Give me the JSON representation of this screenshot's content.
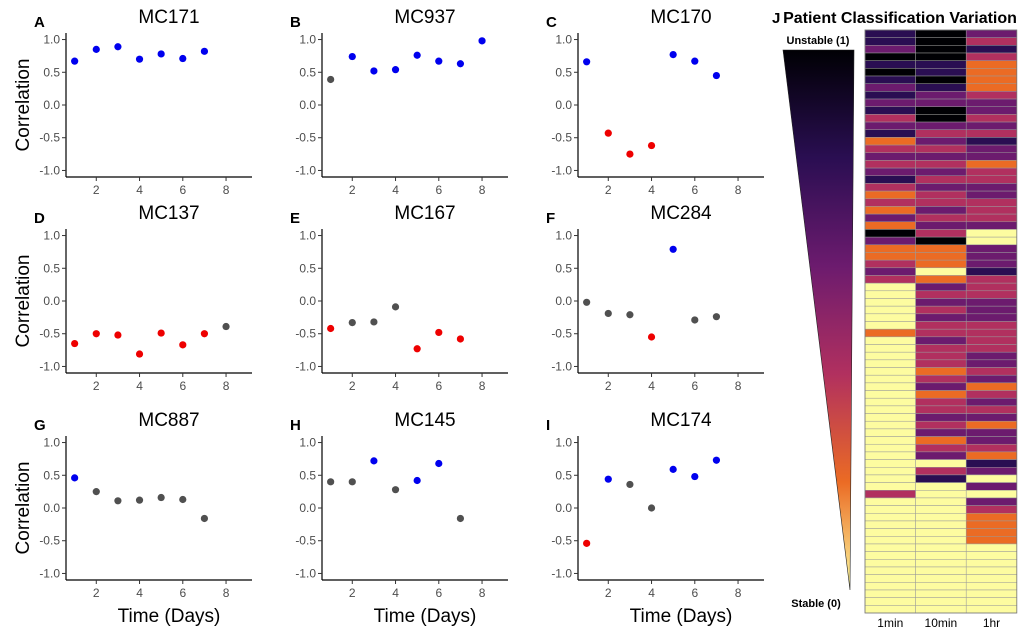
{
  "figure": {
    "ylabel": "Correlation",
    "xlabel": "Time (Days)",
    "colors": {
      "stable_positive": "#0000ee",
      "stable_negative": "#ee0000",
      "neutral": "#505050"
    }
  },
  "chart_data": [
    {
      "type": "scatter",
      "letter": "A",
      "title": "MC171",
      "x": [
        1,
        2,
        3,
        4,
        5,
        6,
        7
      ],
      "y": [
        0.67,
        0.85,
        0.89,
        0.7,
        0.78,
        0.71,
        0.82
      ],
      "colors": [
        "blue",
        "blue",
        "blue",
        "blue",
        "blue",
        "blue",
        "blue"
      ],
      "xlim": [
        0.6,
        9.2
      ],
      "ylim": [
        -1.1,
        1.1
      ],
      "xticks": [
        2,
        4,
        6,
        8
      ],
      "yticks": [
        "1.0",
        "0.5",
        "0.0",
        "-0.5",
        "-1.0"
      ]
    },
    {
      "type": "scatter",
      "letter": "B",
      "title": "MC937",
      "x": [
        1,
        2,
        3,
        4,
        5,
        6,
        7,
        8
      ],
      "y": [
        0.39,
        0.74,
        0.52,
        0.54,
        0.76,
        0.67,
        0.63,
        0.98
      ],
      "colors": [
        "grey",
        "blue",
        "blue",
        "blue",
        "blue",
        "blue",
        "blue",
        "blue"
      ],
      "xlim": [
        0.6,
        9.2
      ],
      "ylim": [
        -1.1,
        1.1
      ],
      "xticks": [
        2,
        4,
        6,
        8
      ],
      "yticks": [
        "1.0",
        "0.5",
        "0.0",
        "-0.5",
        "-1.0"
      ]
    },
    {
      "type": "scatter",
      "letter": "C",
      "title": "MC170",
      "x": [
        1,
        2,
        3,
        4,
        5,
        6,
        7
      ],
      "y": [
        0.66,
        -0.43,
        -0.75,
        -0.62,
        0.77,
        0.67,
        0.45
      ],
      "colors": [
        "blue",
        "red",
        "red",
        "red",
        "blue",
        "blue",
        "blue"
      ],
      "xlim": [
        0.6,
        9.2
      ],
      "ylim": [
        -1.1,
        1.1
      ],
      "xticks": [
        2,
        4,
        6,
        8
      ],
      "yticks": [
        "1.0",
        "0.5",
        "0.0",
        "-0.5",
        "-1.0"
      ]
    },
    {
      "type": "scatter",
      "letter": "D",
      "title": "MC137",
      "x": [
        1,
        2,
        3,
        4,
        5,
        6,
        7,
        8
      ],
      "y": [
        -0.65,
        -0.5,
        -0.52,
        -0.81,
        -0.49,
        -0.67,
        -0.5,
        -0.39
      ],
      "colors": [
        "red",
        "red",
        "red",
        "red",
        "red",
        "red",
        "red",
        "grey"
      ],
      "xlim": [
        0.6,
        9.2
      ],
      "ylim": [
        -1.1,
        1.1
      ],
      "xticks": [
        2,
        4,
        6,
        8
      ],
      "yticks": [
        "1.0",
        "0.5",
        "0.0",
        "-0.5",
        "-1.0"
      ]
    },
    {
      "type": "scatter",
      "letter": "E",
      "title": "MC167",
      "x": [
        1,
        2,
        3,
        4,
        5,
        6,
        7
      ],
      "y": [
        -0.42,
        -0.33,
        -0.32,
        -0.09,
        -0.73,
        -0.48,
        -0.58
      ],
      "colors": [
        "red",
        "grey",
        "grey",
        "grey",
        "red",
        "red",
        "red"
      ],
      "xlim": [
        0.6,
        9.2
      ],
      "ylim": [
        -1.1,
        1.1
      ],
      "xticks": [
        2,
        4,
        6,
        8
      ],
      "yticks": [
        "1.0",
        "0.5",
        "0.0",
        "-0.5",
        "-1.0"
      ]
    },
    {
      "type": "scatter",
      "letter": "F",
      "title": "MC284",
      "x": [
        1,
        2,
        3,
        4,
        5,
        6,
        7
      ],
      "y": [
        -0.02,
        -0.19,
        -0.21,
        -0.55,
        0.79,
        -0.29,
        -0.24
      ],
      "colors": [
        "grey",
        "grey",
        "grey",
        "red",
        "blue",
        "grey",
        "grey"
      ],
      "xlim": [
        0.6,
        9.2
      ],
      "ylim": [
        -1.1,
        1.1
      ],
      "xticks": [
        2,
        4,
        6,
        8
      ],
      "yticks": [
        "1.0",
        "0.5",
        "0.0",
        "-0.5",
        "-1.0"
      ]
    },
    {
      "type": "scatter",
      "letter": "G",
      "title": "MC887",
      "x": [
        1,
        2,
        3,
        4,
        5,
        6,
        7
      ],
      "y": [
        0.46,
        0.25,
        0.11,
        0.12,
        0.16,
        0.13,
        -0.16
      ],
      "colors": [
        "blue",
        "grey",
        "grey",
        "grey",
        "grey",
        "grey",
        "grey"
      ],
      "xlim": [
        0.6,
        9.2
      ],
      "ylim": [
        -1.1,
        1.1
      ],
      "xticks": [
        2,
        4,
        6,
        8
      ],
      "yticks": [
        "1.0",
        "0.5",
        "0.0",
        "-0.5",
        "-1.0"
      ]
    },
    {
      "type": "scatter",
      "letter": "H",
      "title": "MC145",
      "x": [
        1,
        2,
        3,
        4,
        5,
        6,
        7
      ],
      "y": [
        0.4,
        0.4,
        0.72,
        0.28,
        0.42,
        0.68,
        -0.16
      ],
      "colors": [
        "grey",
        "grey",
        "blue",
        "grey",
        "blue",
        "blue",
        "grey"
      ],
      "xlim": [
        0.6,
        9.2
      ],
      "ylim": [
        -1.1,
        1.1
      ],
      "xticks": [
        2,
        4,
        6,
        8
      ],
      "yticks": [
        "1.0",
        "0.5",
        "0.0",
        "-0.5",
        "-1.0"
      ]
    },
    {
      "type": "scatter",
      "letter": "I",
      "title": "MC174",
      "x": [
        1,
        2,
        3,
        4,
        5,
        6,
        7
      ],
      "y": [
        -0.54,
        0.44,
        0.36,
        0.0,
        0.59,
        0.48,
        0.73
      ],
      "colors": [
        "red",
        "blue",
        "grey",
        "grey",
        "blue",
        "blue",
        "blue"
      ],
      "xlim": [
        0.6,
        9.2
      ],
      "ylim": [
        -1.1,
        1.1
      ],
      "xticks": [
        2,
        4,
        6,
        8
      ],
      "yticks": [
        "1.0",
        "0.5",
        "0.0",
        "-0.5",
        "-1.0"
      ]
    },
    {
      "type": "heatmap",
      "letter": "J",
      "title": "Patient Classification Variation",
      "columns": [
        "1min",
        "10min",
        "1hr"
      ],
      "scale_top": "Unstable (1)",
      "scale_bottom": "Stable (0)",
      "palette": [
        "#fdfca0",
        "#eb6b24",
        "#b1305f",
        "#6c1b6e",
        "#2a0e52",
        "#000004"
      ],
      "rows": [
        [
          4,
          5,
          3
        ],
        [
          4,
          5,
          2
        ],
        [
          3,
          5,
          4
        ],
        [
          5,
          5,
          2
        ],
        [
          4,
          4,
          1
        ],
        [
          5,
          4,
          1
        ],
        [
          4,
          5,
          1
        ],
        [
          3,
          4,
          1
        ],
        [
          4,
          3,
          2
        ],
        [
          3,
          3,
          3
        ],
        [
          4,
          5,
          3
        ],
        [
          2,
          5,
          2
        ],
        [
          3,
          3,
          3
        ],
        [
          4,
          2,
          2
        ],
        [
          1,
          3,
          4
        ],
        [
          2,
          2,
          3
        ],
        [
          3,
          3,
          3
        ],
        [
          2,
          2,
          1
        ],
        [
          3,
          3,
          2
        ],
        [
          4,
          2,
          2
        ],
        [
          2,
          3,
          3
        ],
        [
          1,
          2,
          3
        ],
        [
          2,
          2,
          2
        ],
        [
          1,
          3,
          2
        ],
        [
          3,
          2,
          2
        ],
        [
          1,
          3,
          3
        ],
        [
          5,
          2,
          0
        ],
        [
          3,
          5,
          0
        ],
        [
          1,
          1,
          3
        ],
        [
          1,
          1,
          3
        ],
        [
          2,
          1,
          3
        ],
        [
          3,
          0,
          4
        ],
        [
          2,
          1,
          2
        ],
        [
          0,
          3,
          2
        ],
        [
          0,
          2,
          2
        ],
        [
          0,
          3,
          3
        ],
        [
          0,
          2,
          3
        ],
        [
          0,
          3,
          3
        ],
        [
          0,
          2,
          2
        ],
        [
          1,
          2,
          2
        ],
        [
          0,
          3,
          2
        ],
        [
          0,
          2,
          2
        ],
        [
          0,
          2,
          3
        ],
        [
          0,
          2,
          3
        ],
        [
          0,
          1,
          2
        ],
        [
          0,
          2,
          3
        ],
        [
          0,
          3,
          1
        ],
        [
          0,
          1,
          2
        ],
        [
          0,
          2,
          3
        ],
        [
          0,
          2,
          2
        ],
        [
          0,
          3,
          3
        ],
        [
          0,
          2,
          1
        ],
        [
          0,
          3,
          3
        ],
        [
          0,
          1,
          3
        ],
        [
          0,
          2,
          2
        ],
        [
          0,
          3,
          1
        ],
        [
          0,
          0,
          4
        ],
        [
          0,
          2,
          3
        ],
        [
          0,
          4,
          0
        ],
        [
          0,
          0,
          3
        ],
        [
          2,
          0,
          0
        ],
        [
          0,
          0,
          3
        ],
        [
          0,
          0,
          2
        ],
        [
          0,
          0,
          1
        ],
        [
          0,
          0,
          1
        ],
        [
          0,
          0,
          1
        ],
        [
          0,
          0,
          1
        ],
        [
          0,
          0,
          0
        ],
        [
          0,
          0,
          0
        ],
        [
          0,
          0,
          0
        ],
        [
          0,
          0,
          0
        ],
        [
          0,
          0,
          0
        ],
        [
          0,
          0,
          0
        ],
        [
          0,
          0,
          0
        ],
        [
          0,
          0,
          0
        ],
        [
          0,
          0,
          0
        ]
      ]
    }
  ]
}
